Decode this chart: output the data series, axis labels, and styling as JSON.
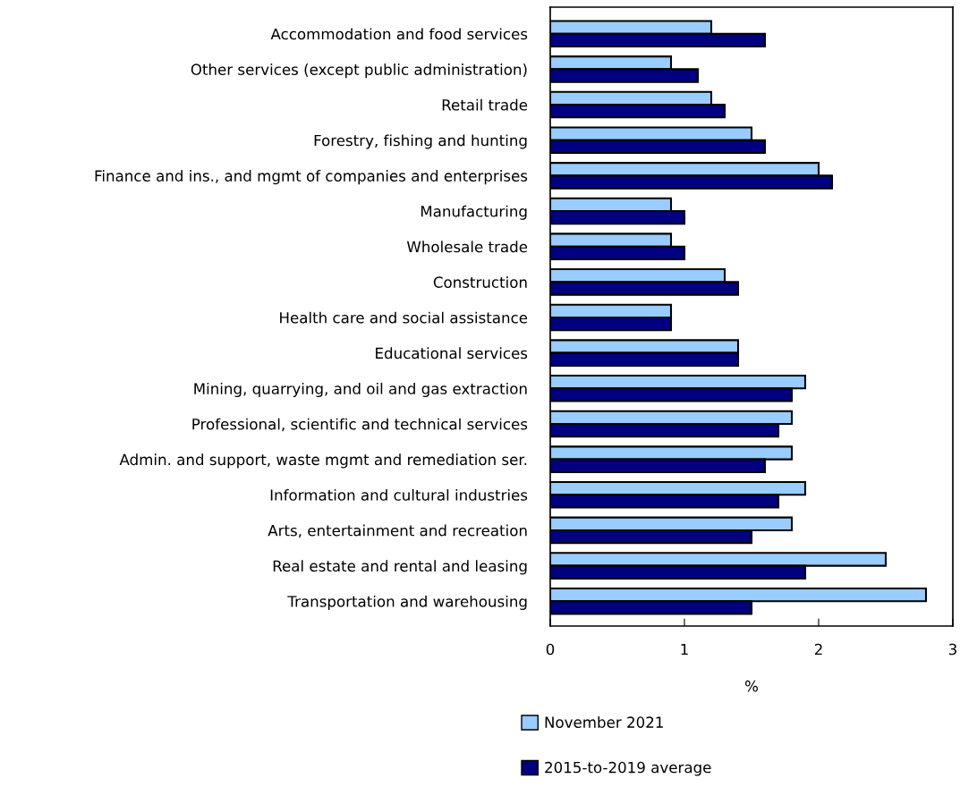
{
  "chart_data": {
    "type": "bar",
    "orientation": "horizontal",
    "xlabel": "%",
    "categories": [
      "Accommodation and food services",
      "Other services (except public administration)",
      "Retail trade",
      "Forestry, fishing and hunting",
      "Finance and ins., and mgmt of companies and enterprises",
      "Manufacturing",
      "Wholesale trade",
      "Construction",
      "Health care and social assistance",
      "Educational services",
      "Mining, quarrying, and oil and gas extraction",
      "Professional, scientific and technical services",
      "Admin. and support, waste mgmt and remediation ser.",
      "Information and cultural industries",
      "Arts, entertainment and recreation",
      "Real estate and rental and leasing",
      "Transportation and warehousing"
    ],
    "series": [
      {
        "name": "November 2021",
        "color": "#99ccff",
        "values": [
          1.2,
          0.9,
          1.2,
          1.5,
          2.0,
          0.9,
          0.9,
          1.3,
          0.9,
          1.4,
          1.9,
          1.8,
          1.8,
          1.9,
          1.8,
          2.5,
          2.8
        ]
      },
      {
        "name": "2015-to-2019 average",
        "color": "#000080",
        "values": [
          1.6,
          1.1,
          1.3,
          1.6,
          2.1,
          1.0,
          1.0,
          1.4,
          0.9,
          1.4,
          1.8,
          1.7,
          1.6,
          1.7,
          1.5,
          1.9,
          1.5
        ]
      }
    ],
    "xlim": [
      0,
      3
    ],
    "xticks": [
      0,
      1,
      2,
      3
    ],
    "grid": false,
    "legend": "bottom"
  }
}
